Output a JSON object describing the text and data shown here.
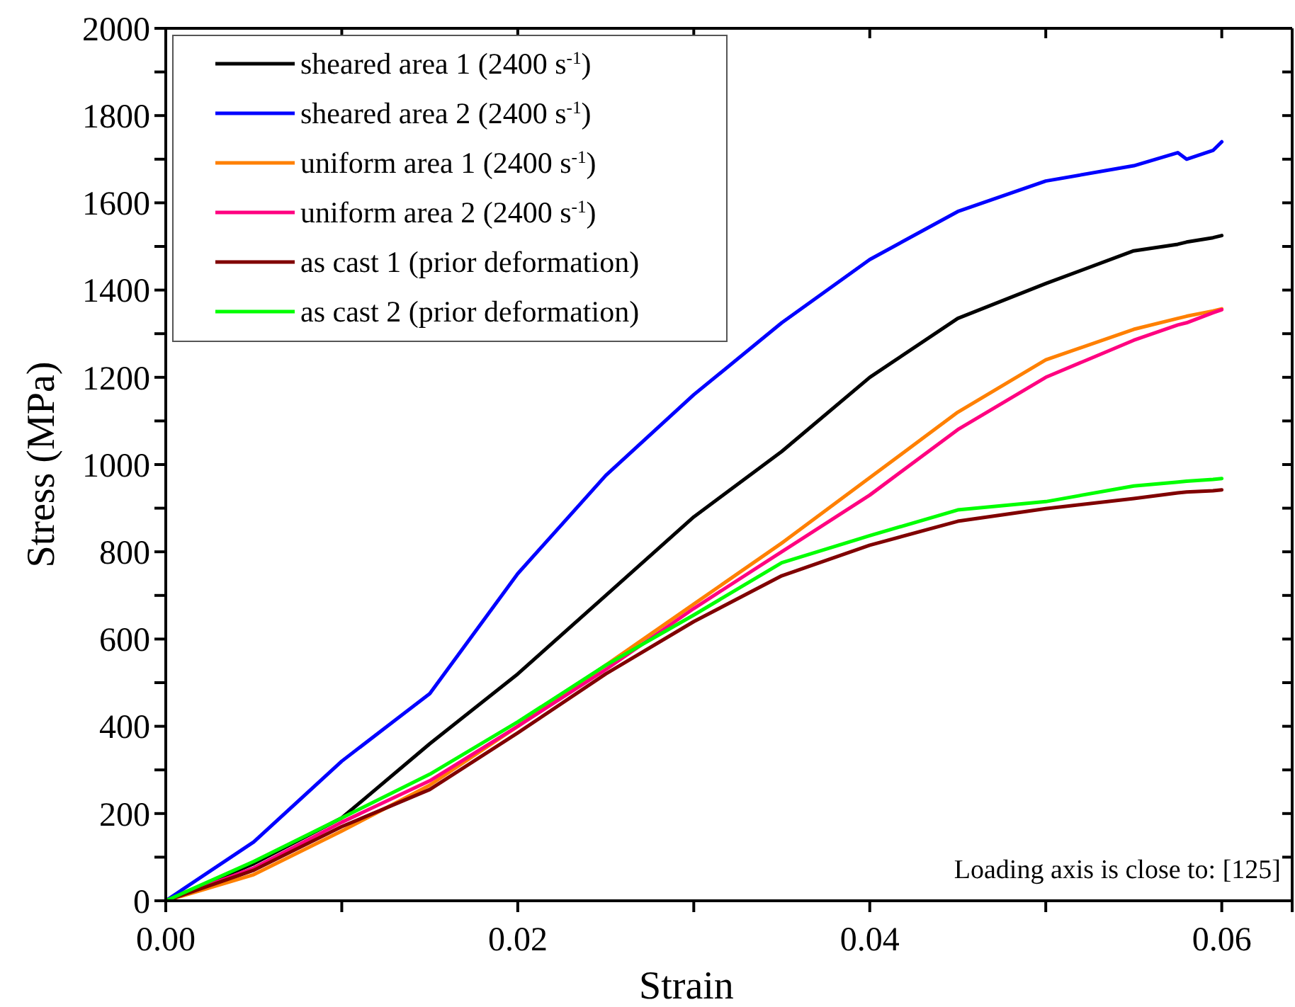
{
  "chart_data": {
    "type": "line",
    "xlabel": "Strain",
    "ylabel": "Stress (MPa)",
    "x": [
      0,
      0.005,
      0.01,
      0.015,
      0.02,
      0.025,
      0.03,
      0.035,
      0.04,
      0.045,
      0.05,
      0.055,
      0.0575,
      0.058,
      0.0595,
      0.06
    ],
    "xlim": [
      0,
      0.064
    ],
    "xticks": [
      {
        "value": 0,
        "label": "0.00"
      },
      {
        "value": 0.01,
        "label": null
      },
      {
        "value": 0.02,
        "label": "0.02"
      },
      {
        "value": 0.03,
        "label": null
      },
      {
        "value": 0.04,
        "label": "0.04"
      },
      {
        "value": 0.05,
        "label": null
      },
      {
        "value": 0.06,
        "label": "0.06"
      }
    ],
    "ylim": [
      0,
      2000
    ],
    "yticks": [
      0,
      {
        "value": 100,
        "label": null
      },
      200,
      {
        "value": 300,
        "label": null
      },
      400,
      {
        "value": 500,
        "label": null
      },
      600,
      {
        "value": 700,
        "label": null
      },
      800,
      {
        "value": 900,
        "label": null
      },
      1000,
      {
        "value": 1100,
        "label": null
      },
      1200,
      {
        "value": 1300,
        "label": null
      },
      1400,
      {
        "value": 1500,
        "label": null
      },
      1600,
      {
        "value": 1700,
        "label": null
      },
      1800,
      {
        "value": 1900,
        "label": null
      },
      2000
    ],
    "series": [
      {
        "name": "sheared area 1 (2400 s$^{-1}$)",
        "color": "#000000",
        "values": [
          0,
          85,
          190,
          360,
          520,
          700,
          880,
          1030,
          1200,
          1335,
          1415,
          1490,
          1505,
          1510,
          1520,
          1525
        ]
      },
      {
        "name": "sheared area 2 (2400 s$^{-1}$)",
        "color": "#0000ff",
        "values": [
          0,
          135,
          320,
          475,
          750,
          975,
          1160,
          1325,
          1470,
          1580,
          1650,
          1685,
          1715,
          1700,
          1720,
          1740
        ]
      },
      {
        "name": "uniform area 1 (2400 s$^{-1}$)",
        "color": "#ff8000",
        "values": [
          0,
          60,
          160,
          265,
          400,
          540,
          680,
          820,
          970,
          1120,
          1240,
          1310,
          1335,
          1340,
          1352,
          1357
        ]
      },
      {
        "name": "uniform area 2 (2400 s$^{-1}$)",
        "color": "#ff0080",
        "values": [
          0,
          75,
          180,
          275,
          400,
          530,
          670,
          800,
          930,
          1080,
          1200,
          1285,
          1320,
          1325,
          1348,
          1355
        ]
      },
      {
        "name": "as cast 1 (prior deformation)",
        "color": "#800000",
        "values": [
          0,
          70,
          170,
          255,
          385,
          520,
          640,
          745,
          815,
          870,
          899,
          922,
          935,
          937,
          940,
          942
        ]
      },
      {
        "name": "as cast 2 (prior deformation)",
        "color": "#00ff00",
        "values": [
          0,
          90,
          190,
          290,
          410,
          540,
          655,
          775,
          837,
          896,
          915,
          951,
          960,
          962,
          966,
          968
        ]
      }
    ],
    "legend": "top left",
    "grid": false,
    "marker": "none",
    "line_style": "solid",
    "annotations": [
      "Loading axis is close to: [125]"
    ]
  }
}
